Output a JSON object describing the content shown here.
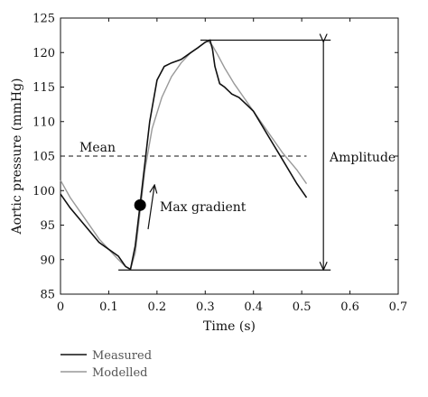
{
  "chart_data": {
    "type": "line",
    "xlabel": "Time (s)",
    "ylabel": "Aortic pressure (mmHg)",
    "xlim": [
      0,
      0.7
    ],
    "ylim": [
      85,
      125
    ],
    "x_ticks": [
      0,
      0.1,
      0.2,
      0.3,
      0.4,
      0.5,
      0.6,
      0.7
    ],
    "x_tick_labels": [
      "0",
      "0.1",
      "0.2",
      "0.3",
      "0.4",
      "0.5",
      "0.6",
      "0.7"
    ],
    "y_ticks": [
      85,
      90,
      95,
      100,
      105,
      110,
      115,
      120,
      125
    ],
    "y_tick_labels": [
      "85",
      "90",
      "95",
      "100",
      "105",
      "110",
      "115",
      "120",
      "125"
    ],
    "grid": false,
    "legend_position": "bottom-left",
    "series": [
      {
        "name": "Measured",
        "color": "#111111",
        "x": [
          0,
          0.02,
          0.05,
          0.08,
          0.1,
          0.12,
          0.135,
          0.145,
          0.155,
          0.165,
          0.175,
          0.185,
          0.2,
          0.215,
          0.23,
          0.25,
          0.27,
          0.285,
          0.3,
          0.31,
          0.315,
          0.32,
          0.33,
          0.34,
          0.355,
          0.37,
          0.385,
          0.4,
          0.43,
          0.46,
          0.49,
          0.51
        ],
        "y": [
          99.5,
          97.5,
          95,
          92.5,
          91.5,
          90.5,
          89,
          88.6,
          92,
          98,
          104,
          110,
          116,
          118,
          118.5,
          119,
          120,
          120.7,
          121.5,
          121.8,
          120.5,
          118,
          115.5,
          115,
          114,
          113.5,
          112.5,
          111.5,
          108,
          104.5,
          101,
          99
        ]
      },
      {
        "name": "Modelled",
        "color": "#999999",
        "x": [
          0,
          0.02,
          0.05,
          0.08,
          0.1,
          0.12,
          0.135,
          0.145,
          0.155,
          0.165,
          0.175,
          0.19,
          0.21,
          0.23,
          0.25,
          0.27,
          0.29,
          0.305,
          0.315,
          0.325,
          0.34,
          0.36,
          0.38,
          0.4,
          0.43,
          0.46,
          0.49,
          0.51
        ],
        "y": [
          101.5,
          99,
          96,
          93,
          91.5,
          90,
          89,
          88.6,
          91,
          97,
          103,
          109,
          113.5,
          116.5,
          118.5,
          120,
          121,
          121.7,
          121,
          119.8,
          117.8,
          115.5,
          113.5,
          111.5,
          108.5,
          105.5,
          103,
          101
        ]
      }
    ],
    "reference_lines": {
      "mean_value": 105,
      "max_value": 121.8,
      "min_value": 88.5,
      "mean_x_range": [
        0,
        0.51
      ],
      "max_x_range": [
        0.29,
        0.56
      ],
      "min_x_range": [
        0.12,
        0.56
      ],
      "amplitude_arrow_x": 0.545
    },
    "max_gradient_point": {
      "x": 0.165,
      "y": 97.9
    },
    "annotations": {
      "mean": "Mean",
      "max_gradient": "Max gradient",
      "amplitude": "Amplitude"
    }
  }
}
